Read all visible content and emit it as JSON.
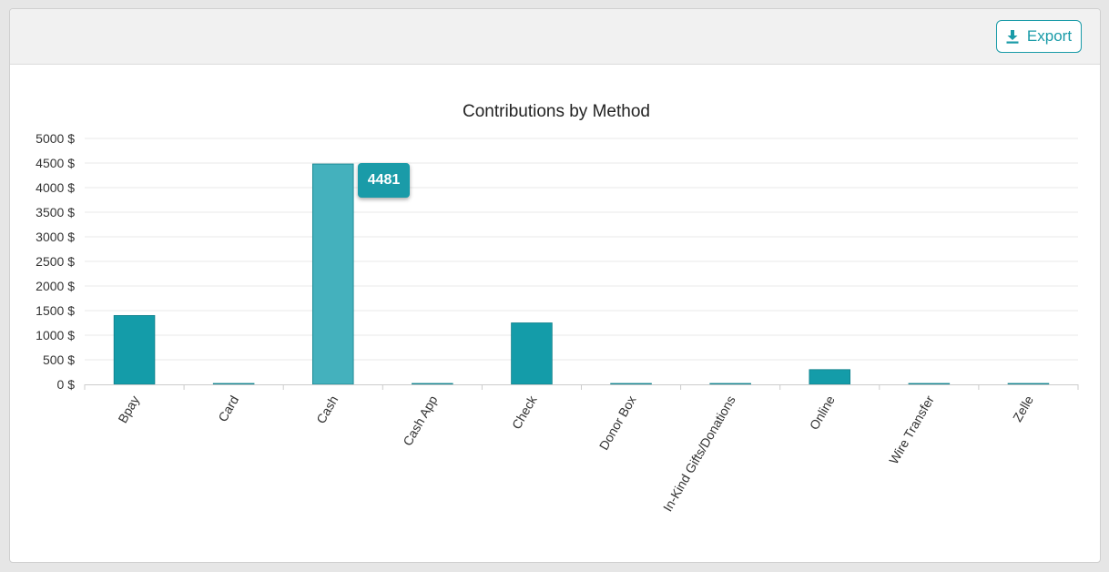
{
  "toolbar": {
    "export_label": "Export",
    "export_icon": "download-icon"
  },
  "colors": {
    "bar": "#149ca9",
    "bar_hover": "#44b1bd",
    "accent": "#1a9ba8",
    "grid": "#e9e9e9",
    "axis": "#cccccc"
  },
  "tooltip": {
    "value": "4481"
  },
  "chart_data": {
    "type": "bar",
    "title": "Contributions by Method",
    "xlabel": "",
    "ylabel": "",
    "categories": [
      "Bpay",
      "Card",
      "Cash",
      "Cash App",
      "Check",
      "Donor Box",
      "In-Kind Gifts/Donations",
      "Online",
      "Wire Transfer",
      "Zelle"
    ],
    "values": [
      1400,
      0,
      4481,
      0,
      1250,
      0,
      0,
      300,
      0,
      0
    ],
    "ylim": [
      0,
      5000
    ],
    "yticks": [
      0,
      500,
      1000,
      1500,
      2000,
      2500,
      3000,
      3500,
      4000,
      4500,
      5000
    ],
    "ytick_labels": [
      "0 $",
      "500 $",
      "1000 $",
      "1500 $",
      "2000 $",
      "2500 $",
      "3000 $",
      "3500 $",
      "4000 $",
      "4500 $",
      "5000 $"
    ],
    "highlighted_category": "Cash",
    "grid": true,
    "legend": "none"
  }
}
